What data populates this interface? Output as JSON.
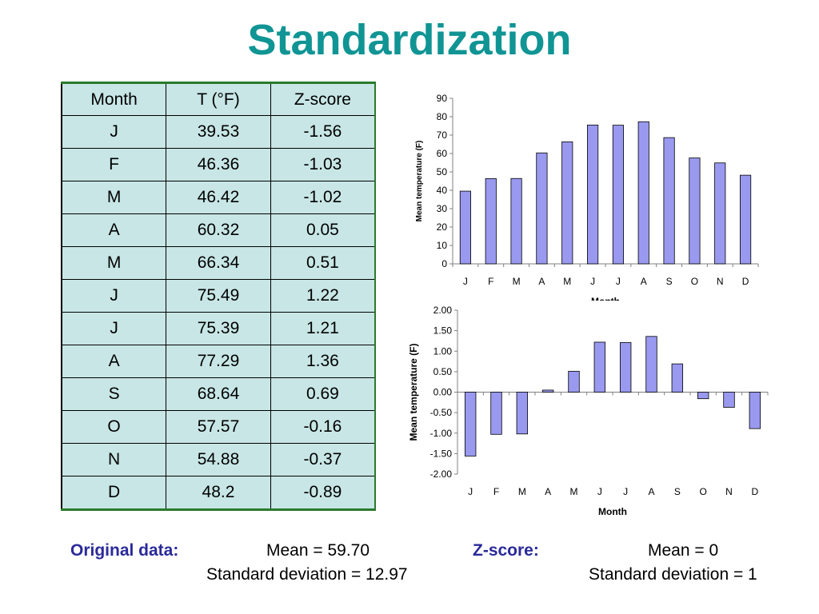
{
  "title": "Standardization",
  "table": {
    "headers": [
      "Month",
      "T (°F)",
      "Z-score"
    ],
    "rows": [
      [
        "J",
        "39.53",
        "-1.56"
      ],
      [
        "F",
        "46.36",
        "-1.03"
      ],
      [
        "M",
        "46.42",
        "-1.02"
      ],
      [
        "A",
        "60.32",
        "0.05"
      ],
      [
        "M",
        "66.34",
        "0.51"
      ],
      [
        "J",
        "75.49",
        "1.22"
      ],
      [
        "J",
        "75.39",
        "1.21"
      ],
      [
        "A",
        "77.29",
        "1.36"
      ],
      [
        "S",
        "68.64",
        "0.69"
      ],
      [
        "O",
        "57.57",
        "-0.16"
      ],
      [
        "N",
        "54.88",
        "-0.37"
      ],
      [
        "D",
        "48.2",
        "-0.89"
      ]
    ]
  },
  "summary": {
    "original_label": "Original data:",
    "original_mean": "Mean = 59.70",
    "original_sd": "Standard deviation = 12.97",
    "z_label": "Z-score:",
    "z_mean": "Mean = 0",
    "z_sd": "Standard deviation = 1"
  },
  "colors": {
    "title": "#109494",
    "bar_fill": "#9999f0",
    "table_fill": "#c8e6e6",
    "label": "#2a2a9a"
  },
  "chart_data": [
    {
      "type": "bar",
      "categories": [
        "J",
        "F",
        "M",
        "A",
        "M",
        "J",
        "J",
        "A",
        "S",
        "O",
        "N",
        "D"
      ],
      "values": [
        39.53,
        46.36,
        46.42,
        60.32,
        66.34,
        75.49,
        75.39,
        77.29,
        68.64,
        57.57,
        54.88,
        48.2
      ],
      "ylabel": "Mean temperature (F)",
      "xlabel": "Month",
      "ylim": [
        0,
        90
      ],
      "yticks": [
        "0",
        "10",
        "20",
        "30",
        "40",
        "50",
        "60",
        "70",
        "80",
        "90"
      ],
      "grid": false
    },
    {
      "type": "bar",
      "categories": [
        "J",
        "F",
        "M",
        "A",
        "M",
        "J",
        "J",
        "A",
        "S",
        "O",
        "N",
        "D"
      ],
      "values": [
        -1.56,
        -1.03,
        -1.02,
        0.05,
        0.51,
        1.22,
        1.21,
        1.36,
        0.69,
        -0.16,
        -0.37,
        -0.89
      ],
      "ylabel": "Mean temperature (F)",
      "xlabel": "Month",
      "ylim": [
        -2,
        2
      ],
      "yticks": [
        "-2.00",
        "-1.50",
        "-1.00",
        "-0.50",
        "0.00",
        "0.50",
        "1.00",
        "1.50",
        "2.00"
      ],
      "grid": false
    }
  ]
}
